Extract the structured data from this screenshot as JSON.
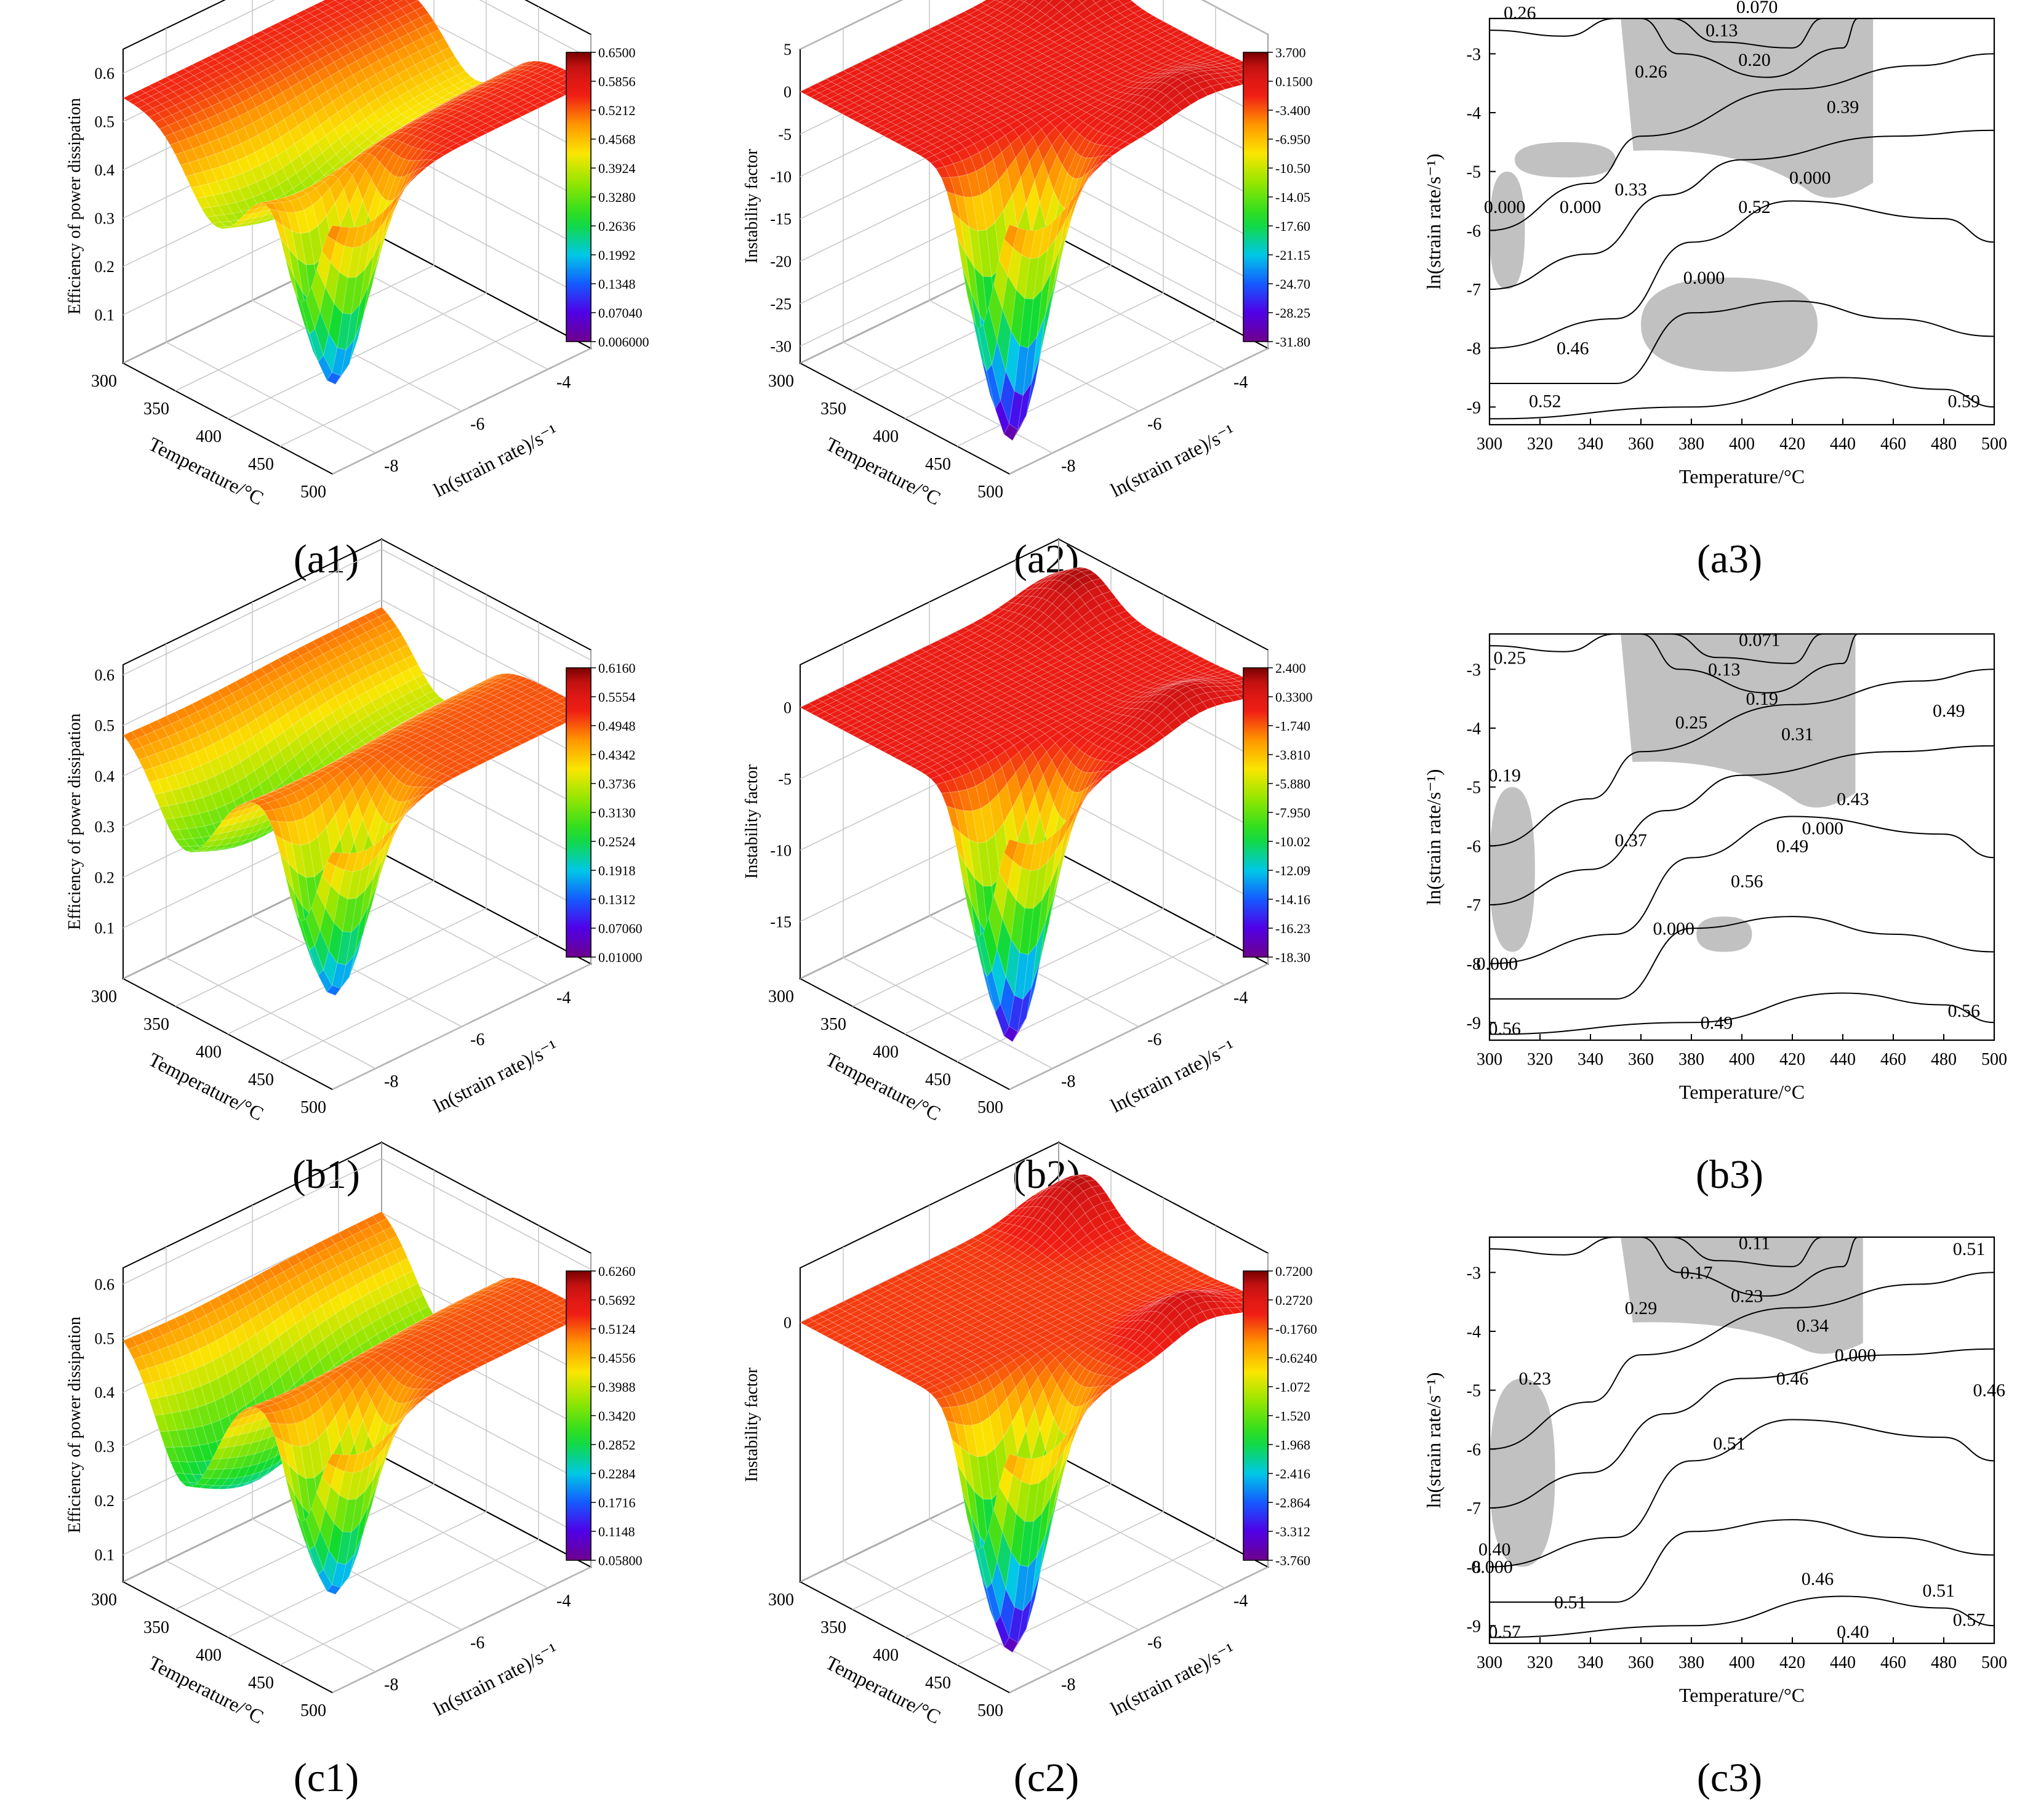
{
  "figure": {
    "panels": [
      {
        "id": "a1",
        "label": "(a1)",
        "kind": "surface",
        "zlabel": "Efficiency of power dissipation",
        "xlabel": "Temperature/°C",
        "ylabel": "ln(strain rate)/s⁻¹",
        "xticks": [
          "300",
          "350",
          "400",
          "450",
          "500"
        ],
        "yticks": [
          "-8",
          "-6",
          "-4"
        ],
        "zticks": [
          "0.1",
          "0.2",
          "0.3",
          "0.4",
          "0.5",
          "0.6"
        ],
        "zrange": [
          0.0,
          0.65
        ],
        "colorbar": [
          "0.6500",
          "0.5856",
          "0.5212",
          "0.4568",
          "0.3924",
          "0.3280",
          "0.2636",
          "0.1992",
          "0.1348",
          "0.07040",
          "0.006000"
        ],
        "surface": {
          "base": 0.55,
          "dip_temp": 390,
          "dip_depth": 0.2,
          "valley_depth": 0.43,
          "valley_temp": 470,
          "valley_rate": -8.2,
          "peak": 0.0
        }
      },
      {
        "id": "a2",
        "label": "(a2)",
        "kind": "surface",
        "zlabel": "Instability factor",
        "xlabel": "Temperature/°C",
        "ylabel": "ln(strain rate)/s⁻¹",
        "xticks": [
          "300",
          "350",
          "400",
          "450",
          "500"
        ],
        "yticks": [
          "-8",
          "-6",
          "-4"
        ],
        "zticks": [
          "-30",
          "-25",
          "-20",
          "-15",
          "-10",
          "-5",
          "0",
          "5"
        ],
        "zrange": [
          -32,
          5
        ],
        "colorbar": [
          "3.700",
          "0.1500",
          "-3.400",
          "-6.950",
          "-10.50",
          "-14.05",
          "-17.60",
          "-21.15",
          "-24.70",
          "-28.25",
          "-31.80"
        ],
        "surface": {
          "base": 0.0,
          "dip_temp": 390,
          "dip_depth": 0.0,
          "valley_depth": 32.0,
          "valley_temp": 470,
          "valley_rate": -8.2,
          "peak": 3.0
        }
      },
      {
        "id": "a3",
        "label": "(a3)",
        "kind": "contour",
        "xlabel": "Temperature/°C",
        "ylabel": "ln(strain rate/s⁻¹)",
        "xticks": [
          "300",
          "320",
          "340",
          "360",
          "380",
          "400",
          "420",
          "440",
          "460",
          "480",
          "500"
        ],
        "yticks": [
          "-3",
          "-4",
          "-5",
          "-6",
          "-7",
          "-8",
          "-9"
        ],
        "contour_labels": [
          {
            "text": "0.26",
            "t": 312,
            "r": -2.3
          },
          {
            "text": "0.070",
            "t": 406,
            "r": -2.2
          },
          {
            "text": "0.13",
            "t": 392,
            "r": -2.6
          },
          {
            "text": "0.20",
            "t": 405,
            "r": -3.1
          },
          {
            "text": "0.26",
            "t": 364,
            "r": -3.3
          },
          {
            "text": "0.39",
            "t": 440,
            "r": -3.9
          },
          {
            "text": "0.33",
            "t": 356,
            "r": -5.3
          },
          {
            "text": "0.000",
            "t": 427,
            "r": -5.1
          },
          {
            "text": "0.52",
            "t": 405,
            "r": -5.6
          },
          {
            "text": "0.000",
            "t": 306,
            "r": -5.6
          },
          {
            "text": "0.000",
            "t": 336,
            "r": -5.6
          },
          {
            "text": "0.000",
            "t": 385,
            "r": -6.8
          },
          {
            "text": "0.46",
            "t": 333,
            "r": -8.0
          },
          {
            "text": "0.52",
            "t": 322,
            "r": -8.9
          },
          {
            "text": "0.59",
            "t": 488,
            "r": -8.9
          }
        ],
        "instability_regions": [
          {
            "name": "top",
            "t0": 352,
            "t1": 452,
            "r0": -2.4,
            "r1": -5.5
          },
          {
            "name": "left",
            "t0": 300,
            "t1": 314,
            "r0": -5.0,
            "r1": -7.0
          },
          {
            "name": "mid",
            "t0": 310,
            "t1": 350,
            "r0": -4.5,
            "r1": -5.1
          },
          {
            "name": "lower",
            "t0": 360,
            "t1": 430,
            "r0": -6.8,
            "r1": -8.4
          }
        ]
      },
      {
        "id": "b1",
        "label": "(b1)",
        "kind": "surface",
        "zlabel": "Efficiency of power dissipation",
        "xlabel": "Temperature/°C",
        "ylabel": "ln(strain rate)/s⁻¹",
        "xticks": [
          "300",
          "350",
          "400",
          "450",
          "500"
        ],
        "yticks": [
          "-8",
          "-6",
          "-4"
        ],
        "zticks": [
          "0.1",
          "0.2",
          "0.3",
          "0.4",
          "0.5",
          "0.6"
        ],
        "zrange": [
          0.0,
          0.62
        ],
        "colorbar": [
          "0.6160",
          "0.5554",
          "0.4948",
          "0.4342",
          "0.3736",
          "0.3130",
          "0.2524",
          "0.1918",
          "0.1312",
          "0.07060",
          "0.01000"
        ],
        "surface": {
          "base": 0.5,
          "dip_temp": 360,
          "dip_depth": 0.22,
          "valley_depth": 0.38,
          "valley_temp": 470,
          "valley_rate": -8.2,
          "peak": 0.0
        }
      },
      {
        "id": "b2",
        "label": "(b2)",
        "kind": "surface",
        "zlabel": "Instability factor",
        "xlabel": "Temperature/°C",
        "ylabel": "ln(strain rate)/s⁻¹",
        "xticks": [
          "300",
          "350",
          "400",
          "450",
          "500"
        ],
        "yticks": [
          "-8",
          "-6",
          "-4"
        ],
        "zticks": [
          "-15",
          "-10",
          "-5",
          "0"
        ],
        "zrange": [
          -19,
          3
        ],
        "colorbar": [
          "2.400",
          "0.3300",
          "-1.740",
          "-3.810",
          "-5.880",
          "-7.950",
          "-10.02",
          "-12.09",
          "-14.16",
          "-16.23",
          "-18.30"
        ],
        "surface": {
          "base": 0.0,
          "dip_temp": 390,
          "dip_depth": 0.0,
          "valley_depth": 18.0,
          "valley_temp": 470,
          "valley_rate": -8.2,
          "peak": 2.2
        }
      },
      {
        "id": "b3",
        "label": "(b3)",
        "kind": "contour",
        "xlabel": "Temperature/°C",
        "ylabel": "ln(strain rate/s⁻¹)",
        "xticks": [
          "300",
          "320",
          "340",
          "360",
          "380",
          "400",
          "420",
          "440",
          "460",
          "480",
          "500"
        ],
        "yticks": [
          "-3",
          "-4",
          "-5",
          "-6",
          "-7",
          "-8",
          "-9"
        ],
        "contour_labels": [
          {
            "text": "0.25",
            "t": 308,
            "r": -2.8
          },
          {
            "text": "0.071",
            "t": 407,
            "r": -2.5
          },
          {
            "text": "0.13",
            "t": 393,
            "r": -3.0
          },
          {
            "text": "0.19",
            "t": 408,
            "r": -3.5
          },
          {
            "text": "0.25",
            "t": 380,
            "r": -3.9
          },
          {
            "text": "0.31",
            "t": 422,
            "r": -4.1
          },
          {
            "text": "0.49",
            "t": 482,
            "r": -3.7
          },
          {
            "text": "0.19",
            "t": 306,
            "r": -4.8
          },
          {
            "text": "0.43",
            "t": 444,
            "r": -5.2
          },
          {
            "text": "0.000",
            "t": 432,
            "r": -5.7
          },
          {
            "text": "0.37",
            "t": 356,
            "r": -5.9
          },
          {
            "text": "0.49",
            "t": 420,
            "r": -6.0
          },
          {
            "text": "0.56",
            "t": 402,
            "r": -6.6
          },
          {
            "text": "0.000",
            "t": 373,
            "r": -7.4
          },
          {
            "text": "0.000",
            "t": 303,
            "r": -8.0
          },
          {
            "text": "0.56",
            "t": 306,
            "r": -9.1
          },
          {
            "text": "0.49",
            "t": 390,
            "r": -9.0
          },
          {
            "text": "0.56",
            "t": 488,
            "r": -8.8
          }
        ],
        "instability_regions": [
          {
            "name": "top",
            "t0": 352,
            "t1": 445,
            "r0": -2.4,
            "r1": -5.4
          },
          {
            "name": "left",
            "t0": 300,
            "t1": 318,
            "r0": -5.0,
            "r1": -7.8
          },
          {
            "name": "lower",
            "t0": 382,
            "t1": 404,
            "r0": -7.2,
            "r1": -7.8
          }
        ]
      },
      {
        "id": "c1",
        "label": "(c1)",
        "kind": "surface",
        "zlabel": "Efficiency of power dissipation",
        "xlabel": "Temperature/°C",
        "ylabel": "ln(strain rate)/s⁻¹",
        "xticks": [
          "300",
          "350",
          "400",
          "450",
          "500"
        ],
        "yticks": [
          "-8",
          "-6",
          "-4"
        ],
        "zticks": [
          "0.1",
          "0.2",
          "0.3",
          "0.4",
          "0.5",
          "0.6"
        ],
        "zrange": [
          0.05,
          0.63
        ],
        "colorbar": [
          "0.6260",
          "0.5692",
          "0.5124",
          "0.4556",
          "0.3988",
          "0.3420",
          "0.2852",
          "0.2284",
          "0.1716",
          "0.1148",
          "0.05800"
        ],
        "surface": {
          "base": 0.52,
          "dip_temp": 360,
          "dip_depth": 0.28,
          "valley_depth": 0.35,
          "valley_temp": 470,
          "valley_rate": -8.2,
          "peak": 0.0
        }
      },
      {
        "id": "c2",
        "label": "(c2)",
        "kind": "surface",
        "zlabel": "Instability factor",
        "xlabel": "Temperature/°C",
        "ylabel": "ln(strain rate)/s⁻¹",
        "xticks": [
          "300",
          "350",
          "400",
          "450",
          "500"
        ],
        "yticks": [
          "-8",
          "-6",
          "-4"
        ],
        "zticks": [
          "0"
        ],
        "zrange": [
          -3.8,
          0.8
        ],
        "colorbar": [
          "0.7200",
          "0.2720",
          "-0.1760",
          "-0.6240",
          "-1.072",
          "-1.520",
          "-1.968",
          "-2.416",
          "-2.864",
          "-3.312",
          "-3.760"
        ],
        "surface": {
          "base": 0.0,
          "dip_temp": 390,
          "dip_depth": 0.0,
          "valley_depth": 3.7,
          "valley_temp": 470,
          "valley_rate": -8.2,
          "peak": 0.6
        }
      },
      {
        "id": "c3",
        "label": "(c3)",
        "kind": "contour",
        "xlabel": "Temperature/°C",
        "ylabel": "ln(strain rate/s⁻¹)",
        "xticks": [
          "300",
          "320",
          "340",
          "360",
          "380",
          "400",
          "420",
          "440",
          "460",
          "480",
          "500"
        ],
        "yticks": [
          "-3",
          "-4",
          "-5",
          "-6",
          "-7",
          "-8",
          "-9"
        ],
        "contour_labels": [
          {
            "text": "0.11",
            "t": 405,
            "r": -2.5
          },
          {
            "text": "0.17",
            "t": 382,
            "r": -3.0
          },
          {
            "text": "0.23",
            "t": 402,
            "r": -3.4
          },
          {
            "text": "0.51",
            "t": 490,
            "r": -2.6
          },
          {
            "text": "0.29",
            "t": 360,
            "r": -3.6
          },
          {
            "text": "0.34",
            "t": 428,
            "r": -3.9
          },
          {
            "text": "0.000",
            "t": 445,
            "r": -4.4
          },
          {
            "text": "0.23",
            "t": 318,
            "r": -4.8
          },
          {
            "text": "0.46",
            "t": 420,
            "r": -4.8
          },
          {
            "text": "0.46",
            "t": 498,
            "r": -5.0
          },
          {
            "text": "0.51",
            "t": 395,
            "r": -5.9
          },
          {
            "text": "0.40",
            "t": 302,
            "r": -7.7
          },
          {
            "text": "0.000",
            "t": 301,
            "r": -8.0
          },
          {
            "text": "0.51",
            "t": 332,
            "r": -8.6
          },
          {
            "text": "0.46",
            "t": 430,
            "r": -8.2
          },
          {
            "text": "0.51",
            "t": 478,
            "r": -8.4
          },
          {
            "text": "0.57",
            "t": 306,
            "r": -9.1
          },
          {
            "text": "0.40",
            "t": 444,
            "r": -9.1
          },
          {
            "text": "0.57",
            "t": 490,
            "r": -8.9
          }
        ],
        "instability_regions": [
          {
            "name": "top",
            "t0": 352,
            "t1": 448,
            "r0": -2.4,
            "r1": -4.4
          },
          {
            "name": "left",
            "t0": 300,
            "t1": 326,
            "r0": -4.8,
            "r1": -8.0
          }
        ]
      }
    ]
  },
  "chart_data": [
    {
      "type": "surface",
      "title": "(a1)",
      "xlabel": "Temperature/°C",
      "ylabel": "ln(strain rate)/s⁻¹",
      "zlabel": "Efficiency of power dissipation",
      "xlim": [
        300,
        500
      ],
      "ylim": [
        -9,
        -3
      ],
      "zlim": [
        0.006,
        0.65
      ]
    },
    {
      "type": "surface",
      "title": "(a2)",
      "xlabel": "Temperature/°C",
      "ylabel": "ln(strain rate)/s⁻¹",
      "zlabel": "Instability factor",
      "xlim": [
        300,
        500
      ],
      "ylim": [
        -9,
        -3
      ],
      "zlim": [
        -31.8,
        3.7
      ]
    },
    {
      "type": "contour",
      "title": "(a3)",
      "xlabel": "Temperature/°C",
      "ylabel": "ln(strain rate/s⁻¹)",
      "xlim": [
        300,
        500
      ],
      "ylim": [
        -9.3,
        -2.4
      ],
      "levels": [
        0.0,
        0.07,
        0.13,
        0.2,
        0.26,
        0.33,
        0.39,
        0.46,
        0.52,
        0.59
      ]
    },
    {
      "type": "surface",
      "title": "(b1)",
      "xlabel": "Temperature/°C",
      "ylabel": "ln(strain rate)/s⁻¹",
      "zlabel": "Efficiency of power dissipation",
      "xlim": [
        300,
        500
      ],
      "ylim": [
        -9,
        -3
      ],
      "zlim": [
        0.01,
        0.616
      ]
    },
    {
      "type": "surface",
      "title": "(b2)",
      "xlabel": "Temperature/°C",
      "ylabel": "ln(strain rate)/s⁻¹",
      "zlabel": "Instability factor",
      "xlim": [
        300,
        500
      ],
      "ylim": [
        -9,
        -3
      ],
      "zlim": [
        -18.3,
        2.4
      ]
    },
    {
      "type": "contour",
      "title": "(b3)",
      "xlabel": "Temperature/°C",
      "ylabel": "ln(strain rate/s⁻¹)",
      "xlim": [
        300,
        500
      ],
      "ylim": [
        -9.3,
        -2.4
      ],
      "levels": [
        0.0,
        0.071,
        0.13,
        0.19,
        0.25,
        0.31,
        0.37,
        0.43,
        0.49,
        0.56
      ]
    },
    {
      "type": "surface",
      "title": "(c1)",
      "xlabel": "Temperature/°C",
      "ylabel": "ln(strain rate)/s⁻¹",
      "zlabel": "Efficiency of power dissipation",
      "xlim": [
        300,
        500
      ],
      "ylim": [
        -9,
        -3
      ],
      "zlim": [
        0.058,
        0.626
      ]
    },
    {
      "type": "surface",
      "title": "(c2)",
      "xlabel": "Temperature/°C",
      "ylabel": "ln(strain rate)/s⁻¹",
      "zlabel": "Instability factor",
      "xlim": [
        300,
        500
      ],
      "ylim": [
        -9,
        -3
      ],
      "zlim": [
        -3.76,
        0.72
      ]
    },
    {
      "type": "contour",
      "title": "(c3)",
      "xlabel": "Temperature/°C",
      "ylabel": "ln(strain rate/s⁻¹)",
      "xlim": [
        300,
        500
      ],
      "ylim": [
        -9.3,
        -2.4
      ],
      "levels": [
        0.0,
        0.11,
        0.17,
        0.23,
        0.29,
        0.34,
        0.4,
        0.46,
        0.51,
        0.57
      ]
    }
  ]
}
